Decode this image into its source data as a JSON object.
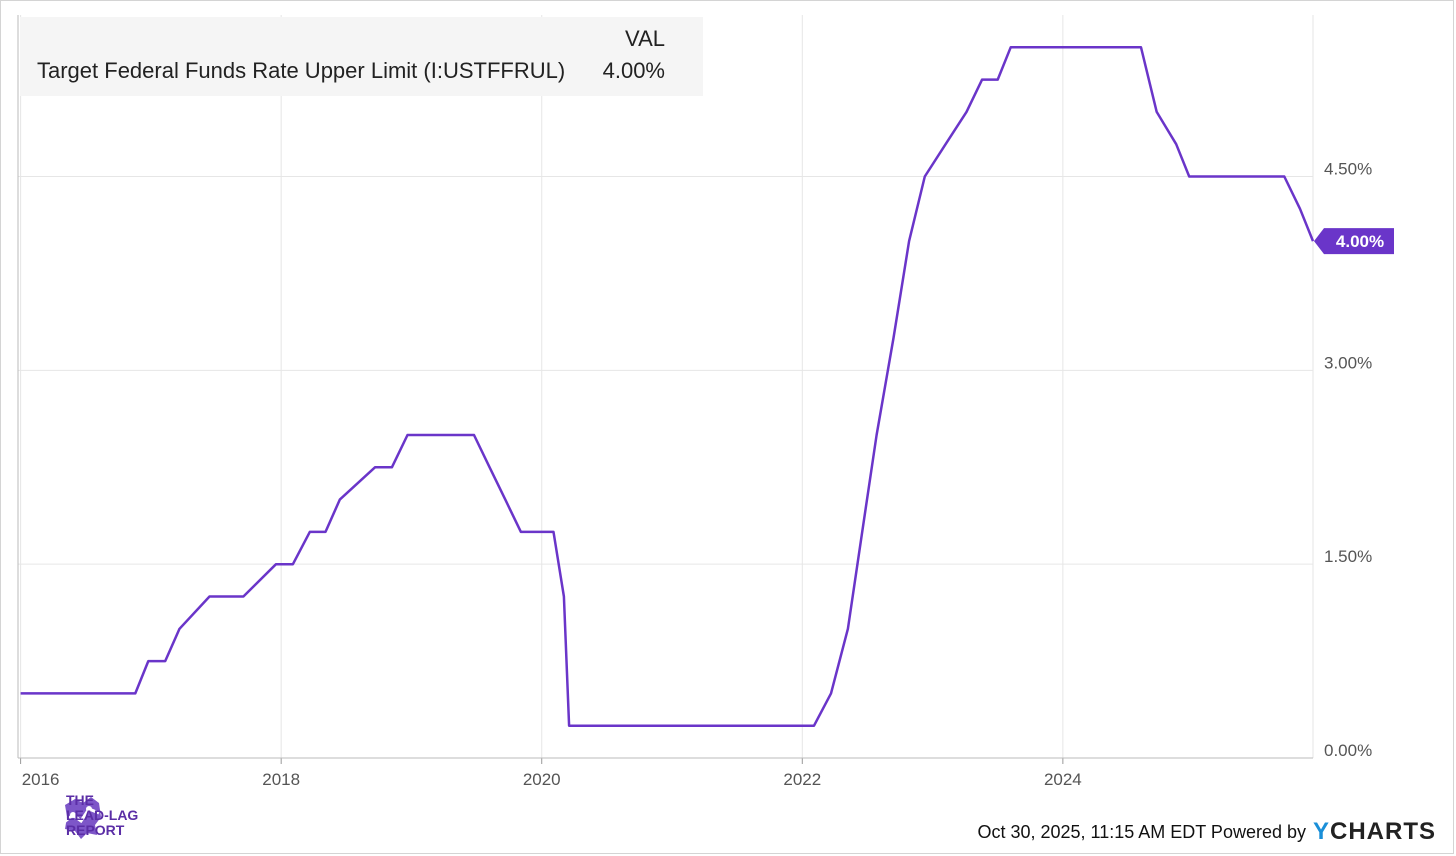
{
  "legend": {
    "column_header": "VAL",
    "series_name": "Target Federal Funds Rate Upper Limit (I:USTFFRUL)",
    "series_value": "4.00%"
  },
  "footer": {
    "timestamp": "Oct 30, 2025, 11:15 AM EDT Powered by",
    "brand": "YCHARTS",
    "brand_y": "Y",
    "brand_rest": "CHARTS"
  },
  "logo": {
    "line1": "THE",
    "line2": "LEAD-LAG",
    "line3": "REPORT"
  },
  "colors": {
    "series": "#6a35c9",
    "grid": "#e6e6e6",
    "axis_text": "#555555",
    "brand_purple": "#5b2ea6",
    "ycharts_blue": "#1a8fd8"
  },
  "chart_data": {
    "type": "line",
    "title": "",
    "xlabel": "",
    "ylabel": "",
    "x_ticks": [
      {
        "label": "2016",
        "year": 2016.0
      },
      {
        "label": "2018",
        "year": 2018.0
      },
      {
        "label": "2020",
        "year": 2020.0
      },
      {
        "label": "2022",
        "year": 2022.0
      },
      {
        "label": "2024",
        "year": 2024.0
      }
    ],
    "y_ticks": [
      {
        "label": "0.00%",
        "value": 0.0
      },
      {
        "label": "1.50%",
        "value": 1.5
      },
      {
        "label": "3.00%",
        "value": 3.0
      },
      {
        "label": "4.50%",
        "value": 4.5
      }
    ],
    "xlim": [
      2015.98,
      2025.92
    ],
    "ylim": [
      0,
      5.75
    ],
    "last_value_label": "4.00%",
    "series": [
      {
        "name": "Target Federal Funds Rate Upper Limit (I:USTFFRUL)",
        "points": [
          [
            2016.0,
            0.5
          ],
          [
            2016.88,
            0.5
          ],
          [
            2016.98,
            0.75
          ],
          [
            2017.11,
            0.75
          ],
          [
            2017.22,
            1.0
          ],
          [
            2017.45,
            1.25
          ],
          [
            2017.71,
            1.25
          ],
          [
            2017.96,
            1.5
          ],
          [
            2018.09,
            1.5
          ],
          [
            2018.22,
            1.75
          ],
          [
            2018.34,
            1.75
          ],
          [
            2018.45,
            2.0
          ],
          [
            2018.72,
            2.25
          ],
          [
            2018.85,
            2.25
          ],
          [
            2018.97,
            2.5
          ],
          [
            2019.48,
            2.5
          ],
          [
            2019.6,
            2.25
          ],
          [
            2019.72,
            2.0
          ],
          [
            2019.84,
            1.75
          ],
          [
            2020.09,
            1.75
          ],
          [
            2020.17,
            1.25
          ],
          [
            2020.21,
            0.25
          ],
          [
            2022.09,
            0.25
          ],
          [
            2022.22,
            0.5
          ],
          [
            2022.35,
            1.0
          ],
          [
            2022.46,
            1.75
          ],
          [
            2022.57,
            2.5
          ],
          [
            2022.7,
            3.25
          ],
          [
            2022.82,
            4.0
          ],
          [
            2022.94,
            4.5
          ],
          [
            2023.1,
            4.75
          ],
          [
            2023.26,
            5.0
          ],
          [
            2023.38,
            5.25
          ],
          [
            2023.5,
            5.25
          ],
          [
            2023.6,
            5.5
          ],
          [
            2024.6,
            5.5
          ],
          [
            2024.72,
            5.0
          ],
          [
            2024.87,
            4.75
          ],
          [
            2024.97,
            4.5
          ],
          [
            2025.7,
            4.5
          ],
          [
            2025.82,
            4.25
          ],
          [
            2025.92,
            4.0
          ]
        ]
      }
    ]
  }
}
